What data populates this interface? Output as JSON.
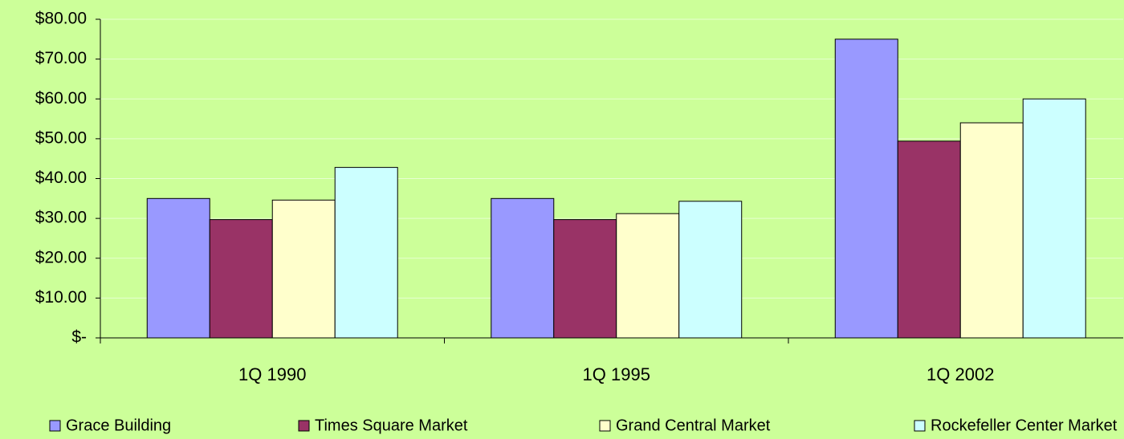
{
  "chart_data": {
    "type": "bar",
    "categories": [
      "1Q 1990",
      "1Q 1995",
      "1Q 2002"
    ],
    "series": [
      {
        "name": "Grace Building",
        "color": "#9999ff",
        "values": [
          35,
          35,
          75
        ]
      },
      {
        "name": "Times Square Market",
        "color": "#993366",
        "values": [
          29.7,
          29.7,
          49.4
        ]
      },
      {
        "name": "Grand Central Market",
        "color": "#ffffcc",
        "values": [
          34.6,
          31.2,
          54
        ]
      },
      {
        "name": "Rockefeller Center Market",
        "color": "#ccffff",
        "values": [
          42.8,
          34.3,
          60
        ]
      }
    ],
    "ylim": [
      0,
      80
    ],
    "yticks": [
      {
        "value": 0,
        "label": "$-"
      },
      {
        "value": 10,
        "label": "$10.00"
      },
      {
        "value": 20,
        "label": "$20.00"
      },
      {
        "value": 30,
        "label": "$30.00"
      },
      {
        "value": 40,
        "label": "$40.00"
      },
      {
        "value": 50,
        "label": "$50.00"
      },
      {
        "value": 60,
        "label": "$60.00"
      },
      {
        "value": 70,
        "label": "$70.00"
      },
      {
        "value": 80,
        "label": "$80.00"
      }
    ],
    "grid": true,
    "legend": "bottom"
  }
}
